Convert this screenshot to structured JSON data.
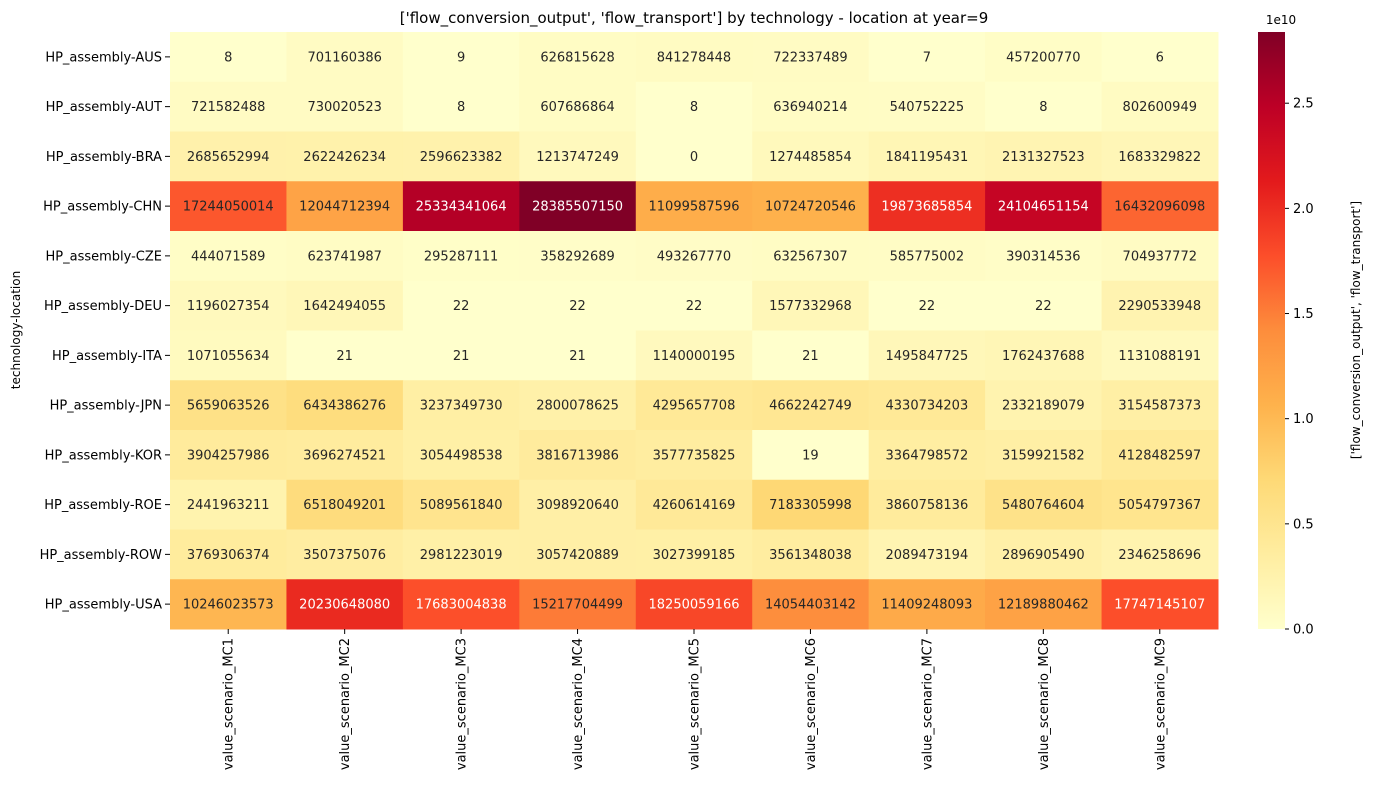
{
  "chart_data": {
    "type": "heatmap",
    "title": "['flow_conversion_output', 'flow_transport'] by technology - location at year=9",
    "xlabel": "",
    "ylabel": "technology-location",
    "colorbar_label": "['flow_conversion_output', 'flow_transport']",
    "colorbar_offset_text": "1e10",
    "colorbar_ticks": [
      0.0,
      0.5,
      1.0,
      1.5,
      2.0,
      2.5
    ],
    "colorbar_tick_labels": [
      "0.0",
      "0.5",
      "1.0",
      "1.5",
      "2.0",
      "2.5"
    ],
    "colorbar_scale": 10000000000,
    "vmin": 0,
    "vmax": 28385507150,
    "colormap": "YlOrRd",
    "columns": [
      "value_scenario_MC1",
      "value_scenario_MC2",
      "value_scenario_MC3",
      "value_scenario_MC4",
      "value_scenario_MC5",
      "value_scenario_MC6",
      "value_scenario_MC7",
      "value_scenario_MC8",
      "value_scenario_MC9"
    ],
    "rows": [
      "HP_assembly-AUS",
      "HP_assembly-AUT",
      "HP_assembly-BRA",
      "HP_assembly-CHN",
      "HP_assembly-CZE",
      "HP_assembly-DEU",
      "HP_assembly-ITA",
      "HP_assembly-JPN",
      "HP_assembly-KOR",
      "HP_assembly-ROE",
      "HP_assembly-ROW",
      "HP_assembly-USA"
    ],
    "values": [
      [
        8,
        701160386,
        9,
        626815628,
        841278448,
        722337489,
        7,
        457200770,
        6
      ],
      [
        721582488,
        730020523,
        8,
        607686864,
        8,
        636940214,
        540752225,
        8,
        802600949
      ],
      [
        2685652994,
        2622426234,
        2596623382,
        1213747249,
        0,
        1274485854,
        1841195431,
        2131327523,
        1683329822
      ],
      [
        17244050014,
        12044712394,
        25334341064,
        28385507150,
        11099587596,
        10724720546,
        19873685854,
        24104651154,
        16432096098
      ],
      [
        444071589,
        623741987,
        295287111,
        358292689,
        493267770,
        632567307,
        585775002,
        390314536,
        704937772
      ],
      [
        1196027354,
        1642494055,
        22,
        22,
        22,
        1577332968,
        22,
        22,
        2290533948
      ],
      [
        1071055634,
        21,
        21,
        21,
        1140000195,
        21,
        1495847725,
        1762437688,
        1131088191
      ],
      [
        5659063526,
        6434386276,
        3237349730,
        2800078625,
        4295657708,
        4662242749,
        4330734203,
        2332189079,
        3154587373
      ],
      [
        3904257986,
        3696274521,
        3054498538,
        3816713986,
        3577735825,
        19,
        3364798572,
        3159921582,
        4128482597
      ],
      [
        2441963211,
        6518049201,
        5089561840,
        3098920640,
        4260614169,
        7183305998,
        3860758136,
        5480764604,
        5054797367
      ],
      [
        3769306374,
        3507375076,
        2981223019,
        3057420889,
        3027399185,
        3561348038,
        2089473194,
        2896905490,
        2346258696
      ],
      [
        10246023573,
        20230648080,
        17683004838,
        15217704499,
        18250059166,
        14054403142,
        11409248093,
        12189880462,
        17747145107
      ]
    ]
  }
}
